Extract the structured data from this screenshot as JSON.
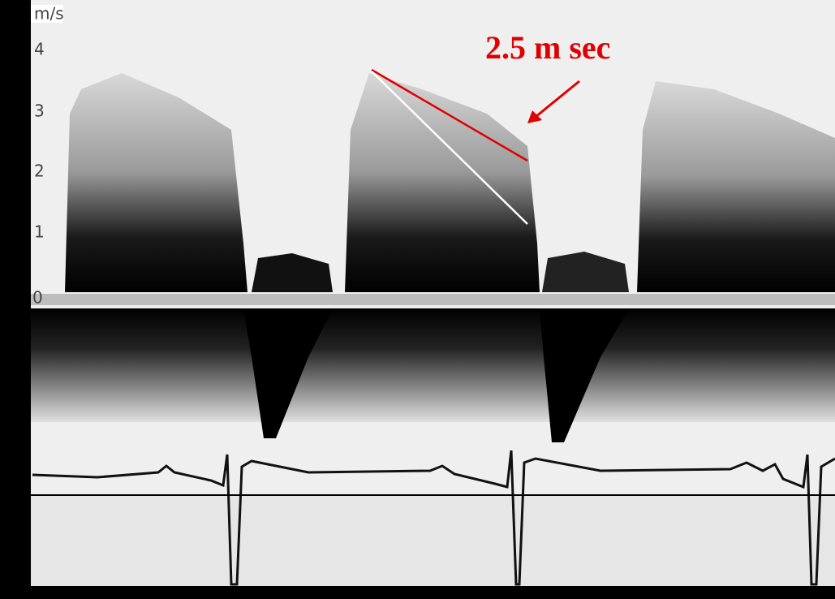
{
  "axis": {
    "unit": "m/s",
    "ticks": [
      "4",
      "3",
      "2",
      "1",
      "0"
    ]
  },
  "annotation": "2.5 m sec"
}
